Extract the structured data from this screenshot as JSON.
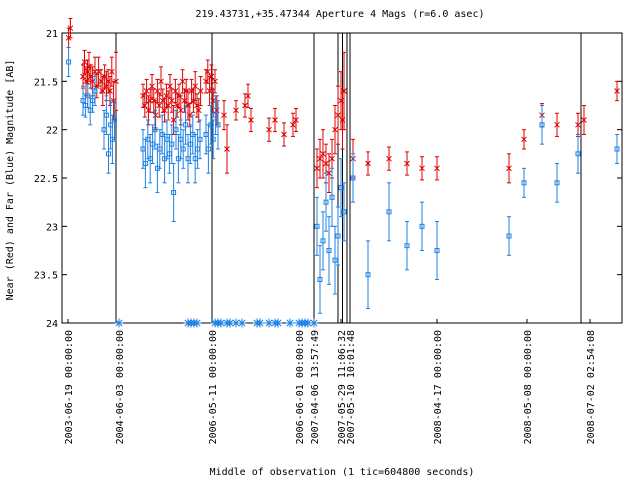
{
  "chart_data": {
    "type": "scatter",
    "title": "219.43731,+35.47344   Aperture 4 Mags (r=6.0 asec)",
    "xlabel": "Middle of observation (1 tic=604800 seconds)",
    "ylabel": "Near (Red) and Far (Blue) Magnitude [AB]",
    "ylim": [
      24,
      21
    ],
    "y_ticks": [
      "21",
      "21.5",
      "22",
      "22.5",
      "23",
      "23.5",
      "24"
    ],
    "x_tick_labels": [
      "2003-06-19 00:00:00",
      "2004-06-03 00:00:00",
      "2006-05-11 00:00:00",
      "2006-06-01 00:00:00",
      "2007-04-06 13:57:49",
      "2007-05-29 11:06:32",
      "2007-05-10 10:01:48",
      "2008-04-17 00:00:00",
      "2008-05-08 00:00:00",
      "2008-07-02 02:54:08"
    ],
    "colors": {
      "near": "#dd0000",
      "far": "#1e82e6",
      "zero_marker": "#1e82e6"
    },
    "series": [
      {
        "name": "Near (Red)",
        "points": [
          [
            0.2,
            21.05,
            0.1
          ],
          [
            0.8,
            20.95,
            0.1
          ],
          [
            5.0,
            21.45,
            0.12
          ],
          [
            5.5,
            21.3,
            0.12
          ],
          [
            6.0,
            21.5,
            0.15
          ],
          [
            6.5,
            21.4,
            0.12
          ],
          [
            7.0,
            21.35,
            0.15
          ],
          [
            7.6,
            21.45,
            0.12
          ],
          [
            8.2,
            21.5,
            0.15
          ],
          [
            9.0,
            21.4,
            0.15
          ],
          [
            9.6,
            21.55,
            0.12
          ],
          [
            10.2,
            21.4,
            0.15
          ],
          [
            11.0,
            21.5,
            0.12
          ],
          [
            11.6,
            21.6,
            0.15
          ],
          [
            12.2,
            21.45,
            0.12
          ],
          [
            12.8,
            21.55,
            0.15
          ],
          [
            13.4,
            21.5,
            0.12
          ],
          [
            14.0,
            21.6,
            0.15
          ],
          [
            14.6,
            21.4,
            0.15
          ],
          [
            15.2,
            21.7,
            0.2
          ],
          [
            16.0,
            21.5,
            0.3
          ],
          [
            25.0,
            21.65,
            0.12
          ],
          [
            25.6,
            21.75,
            0.12
          ],
          [
            26.2,
            21.6,
            0.12
          ],
          [
            26.8,
            21.8,
            0.15
          ],
          [
            27.4,
            21.7,
            0.12
          ],
          [
            28.0,
            21.55,
            0.12
          ],
          [
            28.6,
            21.7,
            0.12
          ],
          [
            29.2,
            21.85,
            0.15
          ],
          [
            29.8,
            21.6,
            0.12
          ],
          [
            30.4,
            21.75,
            0.12
          ],
          [
            31.0,
            21.5,
            0.15
          ],
          [
            31.6,
            21.7,
            0.12
          ],
          [
            32.2,
            21.8,
            0.12
          ],
          [
            32.8,
            21.65,
            0.12
          ],
          [
            33.4,
            21.75,
            0.15
          ],
          [
            34.0,
            21.55,
            0.12
          ],
          [
            34.6,
            21.7,
            0.12
          ],
          [
            35.2,
            21.9,
            0.15
          ],
          [
            35.8,
            21.6,
            0.12
          ],
          [
            36.4,
            21.75,
            0.12
          ],
          [
            37.0,
            21.65,
            0.12
          ],
          [
            37.6,
            21.8,
            0.15
          ],
          [
            38.2,
            21.5,
            0.12
          ],
          [
            38.8,
            21.7,
            0.12
          ],
          [
            39.4,
            21.6,
            0.12
          ],
          [
            40.0,
            21.75,
            0.15
          ],
          [
            40.6,
            21.85,
            0.12
          ],
          [
            41.2,
            21.6,
            0.12
          ],
          [
            41.8,
            21.7,
            0.12
          ],
          [
            42.4,
            21.55,
            0.15
          ],
          [
            43.0,
            21.75,
            0.12
          ],
          [
            43.6,
            21.8,
            0.12
          ],
          [
            44.2,
            21.6,
            0.15
          ],
          [
            46.0,
            21.5,
            0.12
          ],
          [
            46.6,
            21.4,
            0.12
          ],
          [
            47.2,
            21.6,
            0.15
          ],
          [
            47.8,
            21.45,
            0.12
          ],
          [
            48.4,
            21.7,
            0.12
          ],
          [
            49.0,
            21.5,
            0.12
          ],
          [
            49.6,
            21.8,
            0.15
          ],
          [
            52.0,
            21.85,
            0.15
          ],
          [
            53.0,
            22.2,
            0.25
          ],
          [
            56.0,
            21.8,
            0.1
          ],
          [
            59.0,
            21.75,
            0.12
          ],
          [
            60.0,
            21.65,
            0.12
          ],
          [
            61.0,
            21.9,
            0.12
          ],
          [
            67.0,
            22.0,
            0.12
          ],
          [
            69.0,
            21.9,
            0.12
          ],
          [
            72.0,
            22.05,
            0.12
          ],
          [
            75.0,
            21.95,
            0.12
          ],
          [
            76.0,
            21.9,
            0.12
          ],
          [
            83.0,
            22.4,
            0.2
          ],
          [
            84.0,
            22.3,
            0.2
          ],
          [
            85.0,
            22.25,
            0.25
          ],
          [
            86.0,
            22.35,
            0.2
          ],
          [
            87.0,
            22.45,
            0.2
          ],
          [
            88.0,
            22.3,
            0.2
          ],
          [
            89.0,
            22.0,
            0.25
          ],
          [
            90.0,
            21.85,
            0.3
          ],
          [
            91.0,
            21.7,
            0.3
          ],
          [
            91.5,
            21.9,
            0.3
          ],
          [
            92.0,
            21.6,
            0.4
          ],
          [
            95.0,
            22.3,
            0.2
          ],
          [
            100.0,
            22.35,
            0.12
          ],
          [
            107.0,
            22.3,
            0.12
          ],
          [
            113.0,
            22.35,
            0.12
          ],
          [
            118.0,
            22.4,
            0.12
          ],
          [
            123.0,
            22.4,
            0.12
          ],
          [
            147.0,
            22.4,
            0.15
          ],
          [
            152.0,
            22.1,
            0.1
          ],
          [
            158.0,
            21.85,
            0.12
          ],
          [
            163.0,
            21.95,
            0.12
          ],
          [
            170.0,
            21.95,
            0.12
          ],
          [
            172.0,
            21.9,
            0.15
          ],
          [
            183.0,
            21.6,
            0.1
          ]
        ]
      },
      {
        "name": "Far (Blue)",
        "points": [
          [
            0.2,
            21.3,
            0.15
          ],
          [
            5.0,
            21.7,
            0.15
          ],
          [
            5.8,
            21.75,
            0.12
          ],
          [
            6.6,
            21.65,
            0.12
          ],
          [
            7.4,
            21.8,
            0.15
          ],
          [
            8.2,
            21.7,
            0.12
          ],
          [
            9.0,
            21.6,
            0.15
          ],
          [
            12.0,
            22.0,
            0.2
          ],
          [
            12.8,
            21.85,
            0.2
          ],
          [
            13.5,
            22.25,
            0.2
          ],
          [
            14.2,
            21.95,
            0.25
          ],
          [
            14.8,
            22.1,
            0.25
          ],
          [
            15.5,
            21.9,
            0.2
          ],
          [
            25.0,
            22.2,
            0.2
          ],
          [
            25.8,
            22.35,
            0.25
          ],
          [
            26.6,
            22.1,
            0.2
          ],
          [
            27.4,
            22.3,
            0.25
          ],
          [
            28.2,
            22.15,
            0.2
          ],
          [
            29.0,
            22.0,
            0.2
          ],
          [
            29.8,
            22.4,
            0.25
          ],
          [
            30.6,
            22.2,
            0.2
          ],
          [
            31.4,
            22.05,
            0.2
          ],
          [
            32.2,
            22.3,
            0.25
          ],
          [
            33.0,
            22.1,
            0.2
          ],
          [
            33.8,
            22.25,
            0.2
          ],
          [
            34.6,
            22.15,
            0.2
          ],
          [
            35.2,
            22.65,
            0.3
          ],
          [
            36.0,
            22.0,
            0.2
          ],
          [
            36.8,
            22.3,
            0.25
          ],
          [
            37.6,
            22.1,
            0.2
          ],
          [
            38.4,
            22.2,
            0.2
          ],
          [
            39.2,
            21.95,
            0.2
          ],
          [
            40.0,
            22.3,
            0.25
          ],
          [
            40.8,
            22.15,
            0.2
          ],
          [
            41.6,
            22.05,
            0.2
          ],
          [
            42.4,
            22.3,
            0.25
          ],
          [
            43.2,
            22.2,
            0.2
          ],
          [
            44.0,
            22.1,
            0.2
          ],
          [
            46.0,
            22.05,
            0.2
          ],
          [
            46.8,
            22.2,
            0.25
          ],
          [
            47.6,
            21.95,
            0.2
          ],
          [
            48.4,
            22.1,
            0.2
          ],
          [
            49.2,
            21.85,
            0.2
          ],
          [
            50.0,
            21.95,
            0.25
          ],
          [
            83.0,
            23.0,
            0.3
          ],
          [
            84.0,
            23.55,
            0.35
          ],
          [
            85.0,
            23.15,
            0.3
          ],
          [
            86.0,
            22.75,
            0.3
          ],
          [
            87.0,
            23.25,
            0.35
          ],
          [
            88.0,
            22.7,
            0.3
          ],
          [
            89.0,
            23.35,
            0.35
          ],
          [
            90.0,
            23.1,
            0.3
          ],
          [
            91.0,
            22.6,
            0.3
          ],
          [
            92.0,
            22.85,
            0.3
          ],
          [
            95.0,
            22.5,
            0.25
          ],
          [
            100.0,
            23.5,
            0.35
          ],
          [
            107.0,
            22.85,
            0.3
          ],
          [
            113.0,
            23.2,
            0.25
          ],
          [
            118.0,
            23.0,
            0.25
          ],
          [
            123.0,
            23.25,
            0.3
          ],
          [
            147.0,
            23.1,
            0.2
          ],
          [
            152.0,
            22.55,
            0.15
          ],
          [
            158.0,
            21.95,
            0.2
          ],
          [
            163.0,
            22.55,
            0.2
          ],
          [
            170.0,
            22.25,
            0.2
          ],
          [
            183.0,
            22.2,
            0.15
          ]
        ]
      }
    ],
    "markers_at_24": [
      17,
      40,
      41,
      42,
      43,
      49,
      50,
      51,
      53,
      54,
      56,
      58,
      63,
      64,
      67,
      69,
      70,
      74,
      77,
      78,
      79,
      80,
      82
    ],
    "vertical_lines": [
      16,
      48,
      82,
      90,
      91.5,
      93,
      94,
      171
    ]
  }
}
